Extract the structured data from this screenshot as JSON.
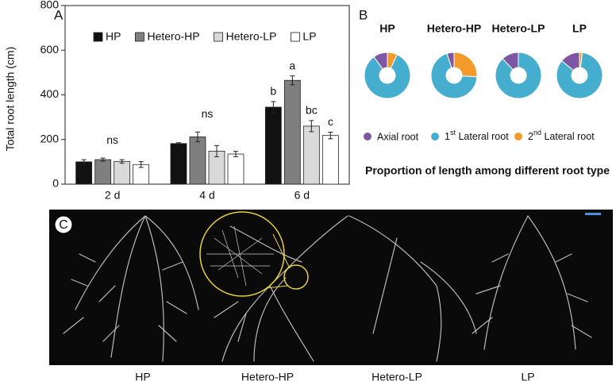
{
  "chart_data": [
    {
      "type": "bar",
      "panel_label": "A",
      "ylabel": "Total root length (cm)",
      "categories": [
        "2 d",
        "4 d",
        "6 d"
      ],
      "series": [
        {
          "name": "HP",
          "color": "#111111",
          "values": [
            100,
            182,
            345
          ],
          "errors": [
            10,
            4,
            25
          ],
          "labels": [
            null,
            null,
            "b"
          ]
        },
        {
          "name": "Hetero-HP",
          "color": "#7f7f7f",
          "values": [
            110,
            212,
            465
          ],
          "errors": [
            7,
            22,
            20
          ],
          "labels": [
            null,
            null,
            "a"
          ]
        },
        {
          "name": "Hetero-LP",
          "color": "#d9d9d9",
          "values": [
            102,
            148,
            260
          ],
          "errors": [
            8,
            25,
            25
          ],
          "labels": [
            null,
            null,
            "bc"
          ]
        },
        {
          "name": "LP",
          "color": "#ffffff",
          "values": [
            88,
            135,
            218
          ],
          "errors": [
            13,
            12,
            15
          ],
          "labels": [
            null,
            null,
            "c"
          ]
        }
      ],
      "group_labels": [
        "ns",
        "ns",
        null
      ],
      "ylim": [
        0,
        800
      ],
      "yticks": [
        0,
        200,
        400,
        600,
        800
      ]
    },
    {
      "type": "pie",
      "panel_label": "B",
      "categories": [
        "Axial root",
        "1st Lateral root",
        "2nd Lateral root"
      ],
      "colors": [
        "#7e57a4",
        "#45aecf",
        "#f39a2a"
      ],
      "pies": [
        {
          "title": "HP",
          "values": [
            10,
            83,
            7
          ]
        },
        {
          "title": "Hetero-HP",
          "values": [
            5,
            69,
            26
          ]
        },
        {
          "title": "Hetero-LP",
          "values": [
            12,
            88,
            0
          ]
        },
        {
          "title": "LP",
          "values": [
            14,
            84,
            2
          ]
        }
      ],
      "caption": "Proportion of length among different root type"
    }
  ],
  "photo": {
    "panel_label": "C",
    "labels": [
      "HP",
      "Hetero-HP",
      "Hetero-LP",
      "LP"
    ]
  }
}
